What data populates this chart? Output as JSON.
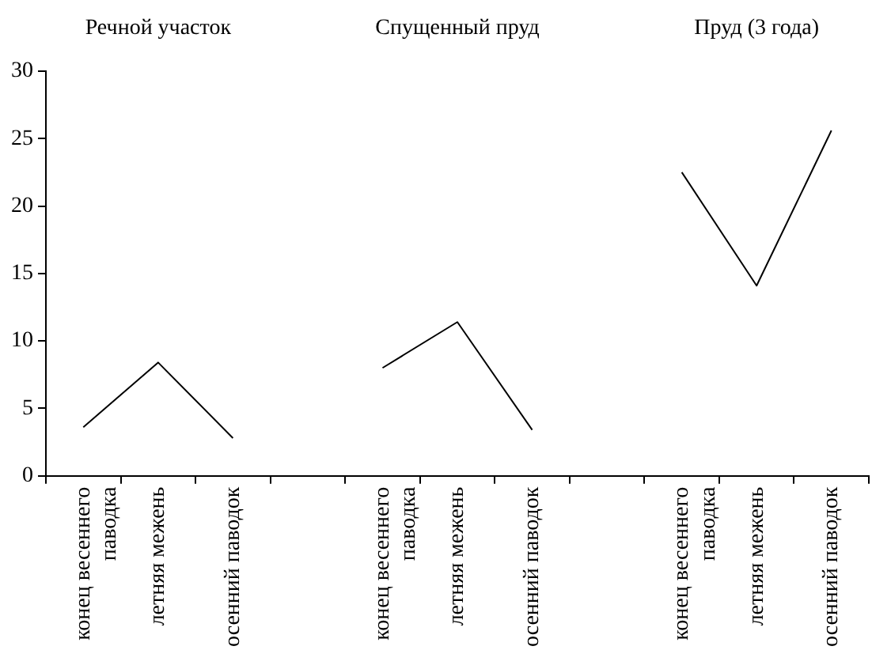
{
  "chart_data": {
    "type": "line",
    "annotations": [
      "Речной участок",
      "Спущенный пруд",
      "Пруд (3 года)"
    ],
    "categories": [
      "конец весеннего паводка",
      "летняя межень",
      "осенний паводок",
      null,
      "конец весеннего паводка",
      "летняя межень",
      "осенний паводок",
      null,
      "конец весеннего паводка",
      "летняя межень",
      "осенний паводок"
    ],
    "series": [
      {
        "color": "#000000",
        "values": [
          3.6,
          8.4,
          2.8,
          null,
          8.0,
          11.4,
          3.4,
          null,
          22.5,
          14.1,
          25.6
        ]
      }
    ],
    "ylim": [
      0,
      30
    ],
    "yticks": [
      0,
      5,
      10,
      15,
      20,
      25,
      30
    ],
    "grid": false,
    "legend": false,
    "marker": "none",
    "line_style": "solid"
  }
}
